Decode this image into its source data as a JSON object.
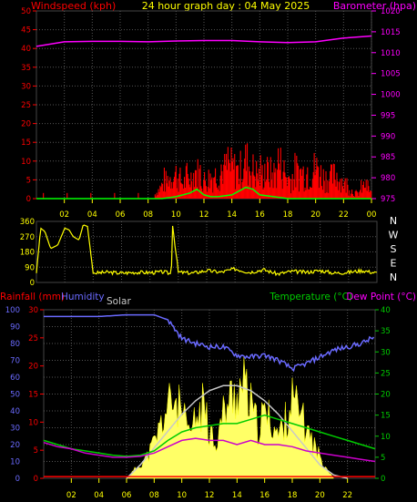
{
  "title": "24 hour graph day : 04 May 2025",
  "colors": {
    "wind": "#ff0000",
    "gust": "#00ff00",
    "baro": "#ff00ff",
    "dir": "#ffff00",
    "hum": "#6a6aff",
    "solar": "#c8c8c8",
    "temp": "#00cc00",
    "dew": "#cc00cc",
    "rain": "#ff0000",
    "sunfill": "#ffff66",
    "grid": "#555555",
    "tick": "#ffff00"
  },
  "chart_data": [
    {
      "type": "line",
      "name": "wind-baro",
      "title": "24 hour graph day : 04 May 2025",
      "ylabel_left": "Windspeed (kph)",
      "ylabel_right": "Barometer (hpa)",
      "xticks": [
        "02",
        "04",
        "06",
        "08",
        "10",
        "12",
        "14",
        "16",
        "18",
        "20",
        "22",
        "00"
      ],
      "yticks_left": [
        "0",
        "5",
        "10",
        "15",
        "20",
        "25",
        "30",
        "35",
        "40",
        "45",
        "50"
      ],
      "yticks_right": [
        "975",
        "980",
        "985",
        "990",
        "995",
        "1000",
        "1005",
        "1010",
        "1015",
        "1020"
      ],
      "ylim_left": [
        0,
        50
      ],
      "ylim_right": [
        975,
        1020
      ],
      "barometer": {
        "x": [
          0,
          2,
          4,
          6,
          8,
          10,
          12,
          14,
          16,
          18,
          20,
          22,
          24
        ],
        "y": [
          1011.5,
          1012.6,
          1012.7,
          1012.7,
          1012.6,
          1012.8,
          1012.9,
          1012.9,
          1012.6,
          1012.4,
          1012.6,
          1013.5,
          1014.0
        ]
      },
      "wind": {
        "x": [
          0,
          4,
          8,
          8.5,
          9,
          9.5,
          10,
          10.5,
          11,
          11.5,
          12,
          12.5,
          13,
          13.5,
          14,
          14.5,
          15,
          15.5,
          16,
          16.5,
          17,
          17.5,
          18,
          18.5,
          19,
          19.5,
          20,
          20.5,
          21,
          21.5,
          22,
          22.5,
          23,
          23.5,
          24
        ],
        "y": [
          0,
          0,
          0,
          2,
          6,
          9,
          11,
          7,
          9,
          12,
          8,
          10,
          11,
          13,
          14,
          12,
          17,
          13,
          10,
          12,
          11,
          15,
          9,
          10,
          12,
          11,
          14,
          10,
          9,
          11,
          7,
          4,
          2,
          6,
          3
        ]
      },
      "gust": {
        "x": [
          0,
          8,
          9,
          10,
          11,
          11.5,
          12,
          12.5,
          13,
          14,
          14.5,
          15,
          15.5,
          16,
          17,
          18,
          19,
          20,
          24
        ],
        "y": [
          0,
          0,
          0,
          0.5,
          1.5,
          2.5,
          1,
          0.5,
          0.5,
          1,
          2,
          3,
          2.5,
          1,
          0.5,
          0,
          0,
          0,
          0
        ]
      }
    },
    {
      "type": "line",
      "name": "wind-direction",
      "yticks": [
        "360",
        "270",
        "180",
        "90",
        "0"
      ],
      "ylim": [
        0,
        360
      ],
      "compass": [
        "N",
        "W",
        "S",
        "E",
        "N"
      ],
      "direction": {
        "x": [
          0,
          0.3,
          0.6,
          1,
          1.5,
          2,
          2.3,
          2.6,
          3,
          3.3,
          3.6,
          4,
          5,
          6,
          7,
          8,
          9,
          9.5,
          9.6,
          10,
          11,
          12,
          13,
          14,
          15,
          16,
          17,
          18,
          19,
          20,
          21,
          22,
          23,
          24
        ],
        "y": [
          55,
          320,
          300,
          200,
          220,
          320,
          310,
          270,
          250,
          340,
          330,
          55,
          60,
          55,
          60,
          58,
          62,
          50,
          340,
          60,
          55,
          70,
          60,
          80,
          60,
          75,
          50,
          65,
          60,
          70,
          55,
          60,
          70,
          55
        ]
      }
    },
    {
      "type": "line",
      "name": "temp-hum-rain-solar",
      "ylabel_left": "Rainfall (mm)",
      "ylabel_hum": "Humidity",
      "ylabel_solar": "Solar",
      "ylabel_temp": "Temperature (°C)",
      "ylabel_dew": "Dew Point (°C)",
      "xticks": [
        "02",
        "04",
        "06",
        "08",
        "10",
        "12",
        "14",
        "16",
        "18",
        "20",
        "22"
      ],
      "yticks_hum": [
        "0",
        "10",
        "20",
        "30",
        "40",
        "50",
        "60",
        "70",
        "80",
        "90",
        "100"
      ],
      "yticks_rain": [
        "0",
        "5",
        "10",
        "15",
        "20",
        "25",
        "30"
      ],
      "yticks_temp": [
        "0",
        "5",
        "10",
        "15",
        "20",
        "25",
        "30",
        "35",
        "40"
      ],
      "ylim_hum": [
        0,
        100
      ],
      "ylim_rain": [
        0,
        30
      ],
      "ylim_temp": [
        0,
        40
      ],
      "humidity": {
        "x": [
          0,
          2,
          4,
          6,
          8,
          9,
          10,
          11,
          12,
          13,
          14,
          15,
          16,
          17,
          18,
          19,
          20,
          21,
          22,
          23,
          24
        ],
        "y": [
          96,
          96,
          96,
          97,
          97,
          94,
          83,
          80,
          78,
          78,
          73,
          72,
          73,
          70,
          65,
          68,
          72,
          76,
          78,
          80,
          84
        ]
      },
      "temperature": {
        "x": [
          0,
          1,
          2,
          3,
          4,
          5,
          6,
          7,
          8,
          9,
          10,
          11,
          12,
          13,
          14,
          15,
          16,
          17,
          18,
          19,
          20,
          21,
          22,
          23,
          24
        ],
        "y": [
          9,
          8,
          7,
          6.5,
          6,
          5.5,
          5.2,
          5.5,
          6.5,
          9,
          11,
          12,
          12.5,
          13,
          13,
          14,
          15,
          14,
          13,
          12,
          11,
          10,
          9,
          8,
          7
        ]
      },
      "dewpoint": {
        "x": [
          0,
          1,
          2,
          3,
          4,
          5,
          6,
          7,
          8,
          9,
          10,
          11,
          12,
          13,
          14,
          15,
          16,
          17,
          18,
          19,
          20,
          21,
          22,
          23,
          24
        ],
        "y": [
          8.5,
          7.5,
          7,
          6,
          5.5,
          5,
          5,
          5.2,
          6,
          7.5,
          9,
          9.5,
          9,
          9,
          8,
          9,
          8,
          8,
          7.5,
          6.5,
          6,
          5.5,
          5,
          4.5,
          4
        ]
      },
      "solar": {
        "x": [
          6,
          7,
          8,
          9,
          10,
          11,
          12,
          13,
          14,
          15,
          16,
          17,
          18,
          19,
          20,
          21,
          22
        ],
        "y": [
          0,
          8,
          18,
          28,
          38,
          46,
          52,
          55,
          55,
          52,
          46,
          38,
          28,
          18,
          8,
          2,
          0
        ]
      },
      "sun": {
        "x": [
          6,
          6.5,
          7,
          7.5,
          8,
          8.5,
          9,
          9.5,
          10,
          10.5,
          11,
          11.5,
          12,
          12.5,
          13,
          13.5,
          14,
          14.5,
          15,
          15.5,
          16,
          16.5,
          17,
          17.5,
          18,
          18.5,
          19,
          19.5,
          20,
          20.5,
          21
        ],
        "y": [
          0,
          2,
          4,
          6,
          10,
          15,
          20,
          22,
          18,
          12,
          16,
          20,
          14,
          10,
          18,
          22,
          24,
          26,
          20,
          14,
          18,
          16,
          12,
          16,
          22,
          18,
          14,
          10,
          6,
          3,
          0
        ]
      },
      "rain": {
        "x": [
          0,
          24
        ],
        "y": [
          0.3,
          0.3
        ]
      }
    }
  ]
}
